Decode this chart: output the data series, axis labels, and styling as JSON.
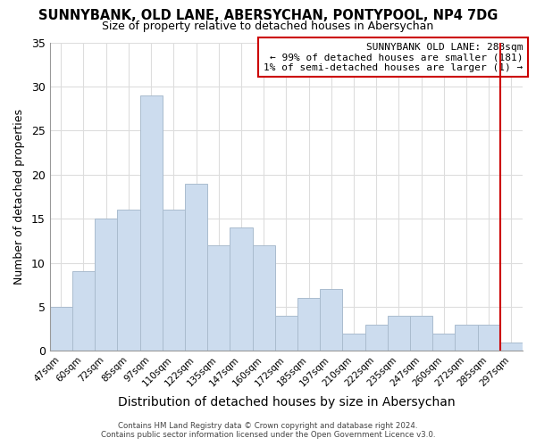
{
  "title": "SUNNYBANK, OLD LANE, ABERSYCHAN, PONTYPOOL, NP4 7DG",
  "subtitle": "Size of property relative to detached houses in Abersychan",
  "xlabel": "Distribution of detached houses by size in Abersychan",
  "ylabel": "Number of detached properties",
  "bar_color": "#ccdcee",
  "bar_edgecolor": "#aabcce",
  "grid_color": "#dddddd",
  "categories": [
    "47sqm",
    "60sqm",
    "72sqm",
    "85sqm",
    "97sqm",
    "110sqm",
    "122sqm",
    "135sqm",
    "147sqm",
    "160sqm",
    "172sqm",
    "185sqm",
    "197sqm",
    "210sqm",
    "222sqm",
    "235sqm",
    "247sqm",
    "260sqm",
    "272sqm",
    "285sqm",
    "297sqm"
  ],
  "values": [
    5,
    9,
    15,
    16,
    29,
    16,
    19,
    12,
    14,
    12,
    4,
    6,
    7,
    2,
    3,
    4,
    4,
    2,
    3,
    3,
    1
  ],
  "ylim": [
    0,
    35
  ],
  "yticks": [
    0,
    5,
    10,
    15,
    20,
    25,
    30,
    35
  ],
  "annotation_title": "SUNNYBANK OLD LANE: 283sqm",
  "annotation_line1": "← 99% of detached houses are smaller (181)",
  "annotation_line2": "1% of semi-detached houses are larger (1) →",
  "vline_color": "#cc0000",
  "box_edge_color": "#cc0000",
  "footer1": "Contains HM Land Registry data © Crown copyright and database right 2024.",
  "footer2": "Contains public sector information licensed under the Open Government Licence v3.0.",
  "background_color": "#ffffff"
}
